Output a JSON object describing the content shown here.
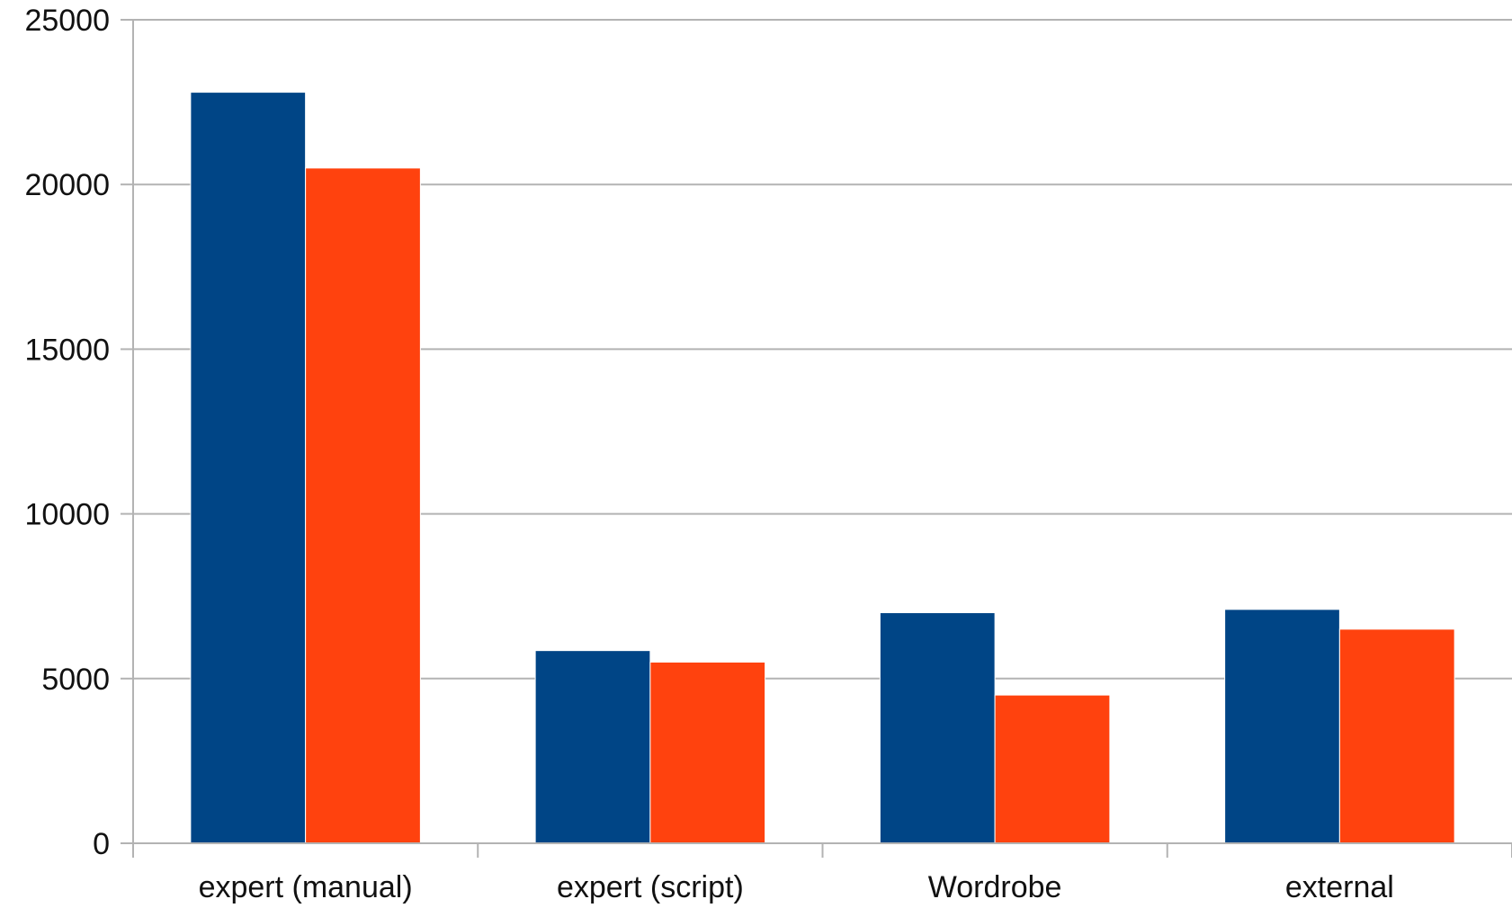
{
  "chart_data": {
    "type": "bar",
    "title": "",
    "xlabel": "",
    "ylabel": "",
    "categories": [
      "expert (manual)",
      "expert (script)",
      "Wordrobe",
      "external"
    ],
    "series": [
      {
        "color": "#004586",
        "values": [
          22800,
          5850,
          7000,
          7100
        ]
      },
      {
        "color": "#ff420e",
        "values": [
          20500,
          5500,
          4500,
          6500
        ]
      }
    ],
    "ylim": [
      0,
      25000
    ],
    "yticks": [
      0,
      5000,
      10000,
      15000,
      20000,
      25000
    ],
    "grid": true,
    "legend": "none"
  }
}
